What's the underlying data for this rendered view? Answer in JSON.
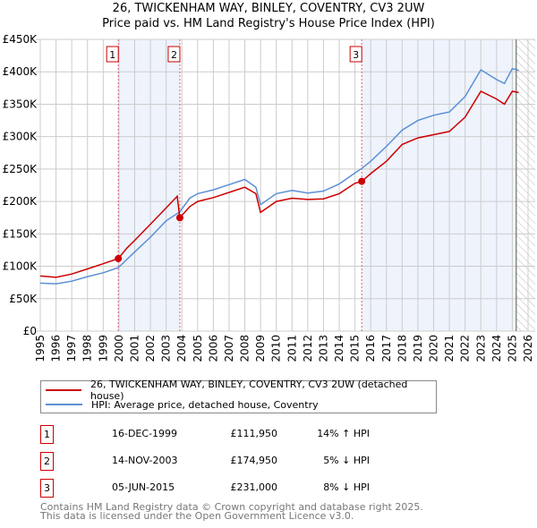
{
  "chart_data": {
    "type": "line",
    "title": "26, TWICKENHAM WAY, BINLEY, COVENTRY, CV3 2UW",
    "subtitle": "Price paid vs. HM Land Registry's House Price Index (HPI)",
    "xlim": [
      1995,
      2026
    ],
    "ylim": [
      0,
      450000
    ],
    "grid": true,
    "x_ticks": [
      "1995",
      "1996",
      "1997",
      "1998",
      "1999",
      "2000",
      "2001",
      "2002",
      "2003",
      "2004",
      "2005",
      "2006",
      "2007",
      "2008",
      "2009",
      "2010",
      "2011",
      "2012",
      "2013",
      "2014",
      "2015",
      "2016",
      "2017",
      "2018",
      "2019",
      "2020",
      "2021",
      "2022",
      "2023",
      "2024",
      "2025",
      "2026"
    ],
    "y_ticks": [
      {
        "value": 0,
        "label": "£0"
      },
      {
        "value": 50000,
        "label": "£50K"
      },
      {
        "value": 100000,
        "label": "£100K"
      },
      {
        "value": 150000,
        "label": "£150K"
      },
      {
        "value": 200000,
        "label": "£200K"
      },
      {
        "value": 250000,
        "label": "£250K"
      },
      {
        "value": 300000,
        "label": "£300K"
      },
      {
        "value": 350000,
        "label": "£350K"
      },
      {
        "value": 400000,
        "label": "£400K"
      },
      {
        "value": 450000,
        "label": "£450K"
      }
    ],
    "series": [
      {
        "name": "26, TWICKENHAM WAY, BINLEY, COVENTRY, CV3 2UW (detached house)",
        "color": "#cc0000",
        "x": [
          1995,
          1996,
          1997,
          1998,
          1999,
          1999.96,
          2000.5,
          2001,
          2002,
          2003,
          2003.7,
          2003.87,
          2004.5,
          2005,
          2006,
          2007,
          2008,
          2008.7,
          2009,
          2010,
          2011,
          2012,
          2013,
          2014,
          2015,
          2015.43,
          2016,
          2017,
          2018,
          2019,
          2020,
          2021,
          2022,
          2023,
          2024,
          2024.5,
          2025,
          2025.4
        ],
        "y": [
          85000,
          83000,
          88000,
          96000,
          104000,
          111950,
          128000,
          140000,
          165000,
          190000,
          208000,
          174950,
          192000,
          200000,
          206000,
          214000,
          222000,
          212000,
          183000,
          200000,
          205000,
          203000,
          204000,
          212000,
          228000,
          231000,
          243000,
          262000,
          288000,
          298000,
          303000,
          308000,
          330000,
          370000,
          358000,
          350000,
          370000,
          368000
        ]
      },
      {
        "name": "HPI: Average price, detached house, Coventry",
        "color": "#5b8fd4",
        "x": [
          1995,
          1996,
          1997,
          1998,
          1999,
          1999.96,
          2001,
          2002,
          2003,
          2003.87,
          2004.5,
          2005,
          2006,
          2007,
          2008,
          2008.7,
          2009,
          2010,
          2011,
          2012,
          2013,
          2014,
          2015,
          2015.43,
          2016,
          2017,
          2018,
          2019,
          2020,
          2021,
          2022,
          2023,
          2024,
          2024.5,
          2025,
          2025.4
        ],
        "y": [
          74000,
          73000,
          77000,
          84000,
          90000,
          98000,
          122000,
          145000,
          170000,
          184000,
          205000,
          212000,
          218000,
          226000,
          234000,
          222000,
          195000,
          212000,
          217000,
          213000,
          216000,
          227000,
          244000,
          251000,
          262000,
          285000,
          310000,
          325000,
          333000,
          338000,
          362000,
          403000,
          388000,
          382000,
          405000,
          402000
        ]
      }
    ],
    "sales": [
      {
        "id": "1",
        "date": "16-DEC-1999",
        "x": 1999.96,
        "price": 111950,
        "price_label": "£111,950",
        "hpi": "14% ↑ HPI"
      },
      {
        "id": "2",
        "date": "14-NOV-2003",
        "x": 2003.87,
        "price": 174950,
        "price_label": "£174,950",
        "hpi": "5% ↓ HPI"
      },
      {
        "id": "3",
        "date": "05-JUN-2015",
        "x": 2015.43,
        "price": 231000,
        "price_label": "£231,000",
        "hpi": "8% ↓ HPI"
      }
    ],
    "projection_start": 2025.25,
    "legend_position": "bottom"
  },
  "footer": {
    "line1": "Contains HM Land Registry data © Crown copyright and database right 2025.",
    "line2": "This data is licensed under the Open Government Licence v3.0."
  },
  "colors": {
    "red": "#cc0000",
    "blue": "#5b8fd4",
    "shade": "#eef3fc"
  }
}
